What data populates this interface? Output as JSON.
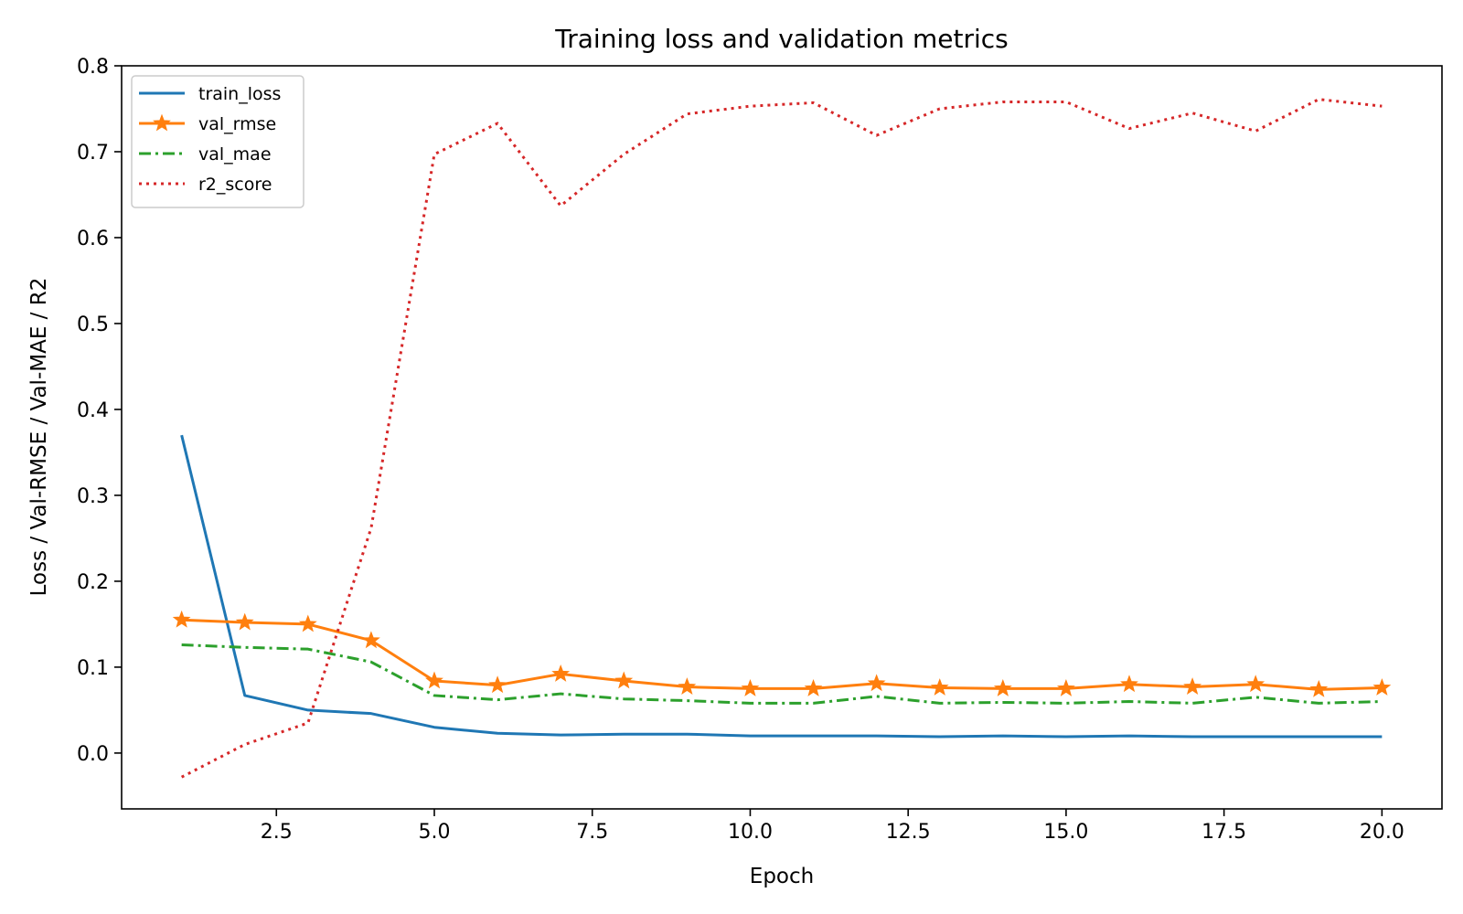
{
  "chart_data": {
    "type": "line",
    "title": "Training loss and validation metrics",
    "xlabel": "Epoch",
    "ylabel": "Loss / Val-RMSE / Val-MAE / R2",
    "xlim": [
      0.05,
      20.95
    ],
    "ylim": [
      -0.065,
      0.8
    ],
    "xticks": [
      2.5,
      5.0,
      7.5,
      10.0,
      12.5,
      15.0,
      17.5,
      20.0
    ],
    "xtick_labels": [
      "2.5",
      "5.0",
      "7.5",
      "10.0",
      "12.5",
      "15.0",
      "17.5",
      "20.0"
    ],
    "yticks": [
      0.0,
      0.1,
      0.2,
      0.3,
      0.4,
      0.5,
      0.6,
      0.7,
      0.8
    ],
    "ytick_labels": [
      "0.0",
      "0.1",
      "0.2",
      "0.3",
      "0.4",
      "0.5",
      "0.6",
      "0.7",
      "0.8"
    ],
    "grid": false,
    "legend_position": "top-left",
    "x": [
      1,
      2,
      3,
      4,
      5,
      6,
      7,
      8,
      9,
      10,
      11,
      12,
      13,
      14,
      15,
      16,
      17,
      18,
      19,
      20
    ],
    "series": [
      {
        "name": "train_loss",
        "color": "#1f77b4",
        "style": "solid",
        "marker": "none",
        "values": [
          0.37,
          0.067,
          0.05,
          0.046,
          0.03,
          0.023,
          0.021,
          0.022,
          0.022,
          0.02,
          0.02,
          0.02,
          0.019,
          0.02,
          0.019,
          0.02,
          0.019,
          0.019,
          0.019,
          0.019
        ]
      },
      {
        "name": "val_rmse",
        "color": "#ff7f0e",
        "style": "solid",
        "marker": "star",
        "values": [
          0.155,
          0.152,
          0.15,
          0.131,
          0.084,
          0.079,
          0.092,
          0.084,
          0.077,
          0.075,
          0.075,
          0.081,
          0.076,
          0.075,
          0.075,
          0.08,
          0.077,
          0.08,
          0.074,
          0.076
        ]
      },
      {
        "name": "val_mae",
        "color": "#2ca02c",
        "style": "dashdot",
        "marker": "none",
        "values": [
          0.126,
          0.123,
          0.121,
          0.106,
          0.067,
          0.062,
          0.069,
          0.063,
          0.061,
          0.058,
          0.058,
          0.066,
          0.058,
          0.059,
          0.058,
          0.06,
          0.058,
          0.065,
          0.058,
          0.06
        ]
      },
      {
        "name": "r2_score",
        "color": "#d62728",
        "style": "dotted",
        "marker": "none",
        "values": [
          -0.028,
          0.01,
          0.035,
          0.262,
          0.697,
          0.733,
          0.637,
          0.697,
          0.744,
          0.753,
          0.757,
          0.719,
          0.75,
          0.758,
          0.758,
          0.727,
          0.745,
          0.724,
          0.761,
          0.753
        ]
      }
    ]
  }
}
